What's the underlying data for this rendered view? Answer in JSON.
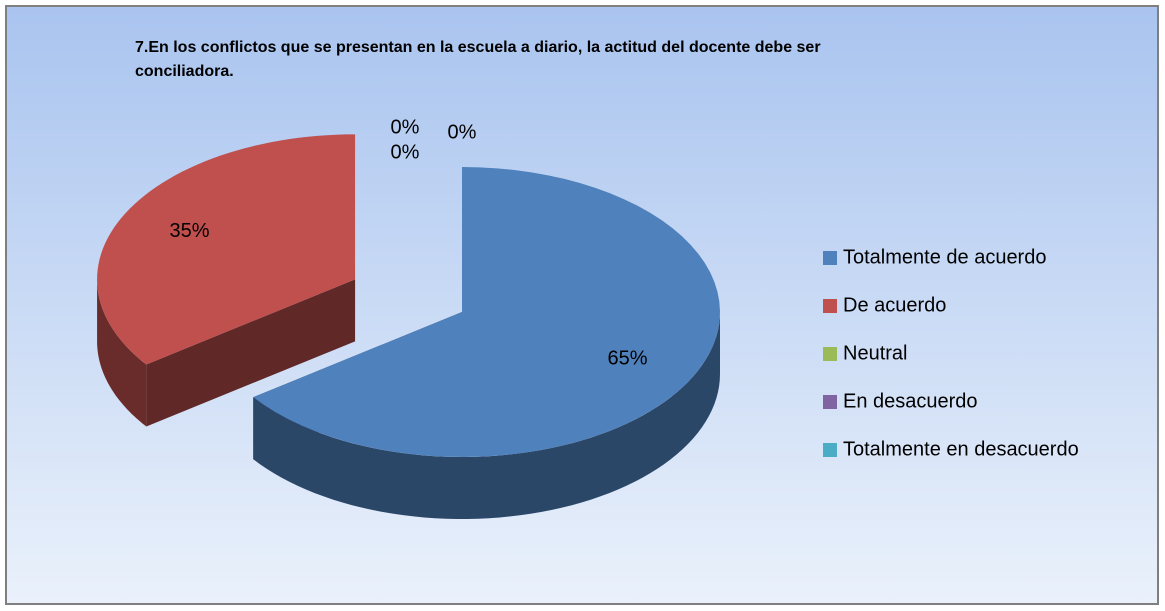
{
  "chart_data": {
    "type": "pie",
    "title": "7.En los conflictos que se presentan en la escuela a diario, la actitud del docente debe ser conciliadora.",
    "categories": [
      "Totalmente de acuerdo",
      "De acuerdo",
      "Neutral",
      "En desacuerdo",
      "Totalmente en desacuerdo"
    ],
    "values": [
      65,
      35,
      0,
      0,
      0
    ],
    "value_labels": [
      "65%",
      "35%",
      "0%",
      "0%",
      "0%"
    ],
    "colors": [
      "#4f81bd",
      "#c0504d",
      "#9bbb59",
      "#8064a2",
      "#4bacc6"
    ],
    "legend": "right"
  }
}
